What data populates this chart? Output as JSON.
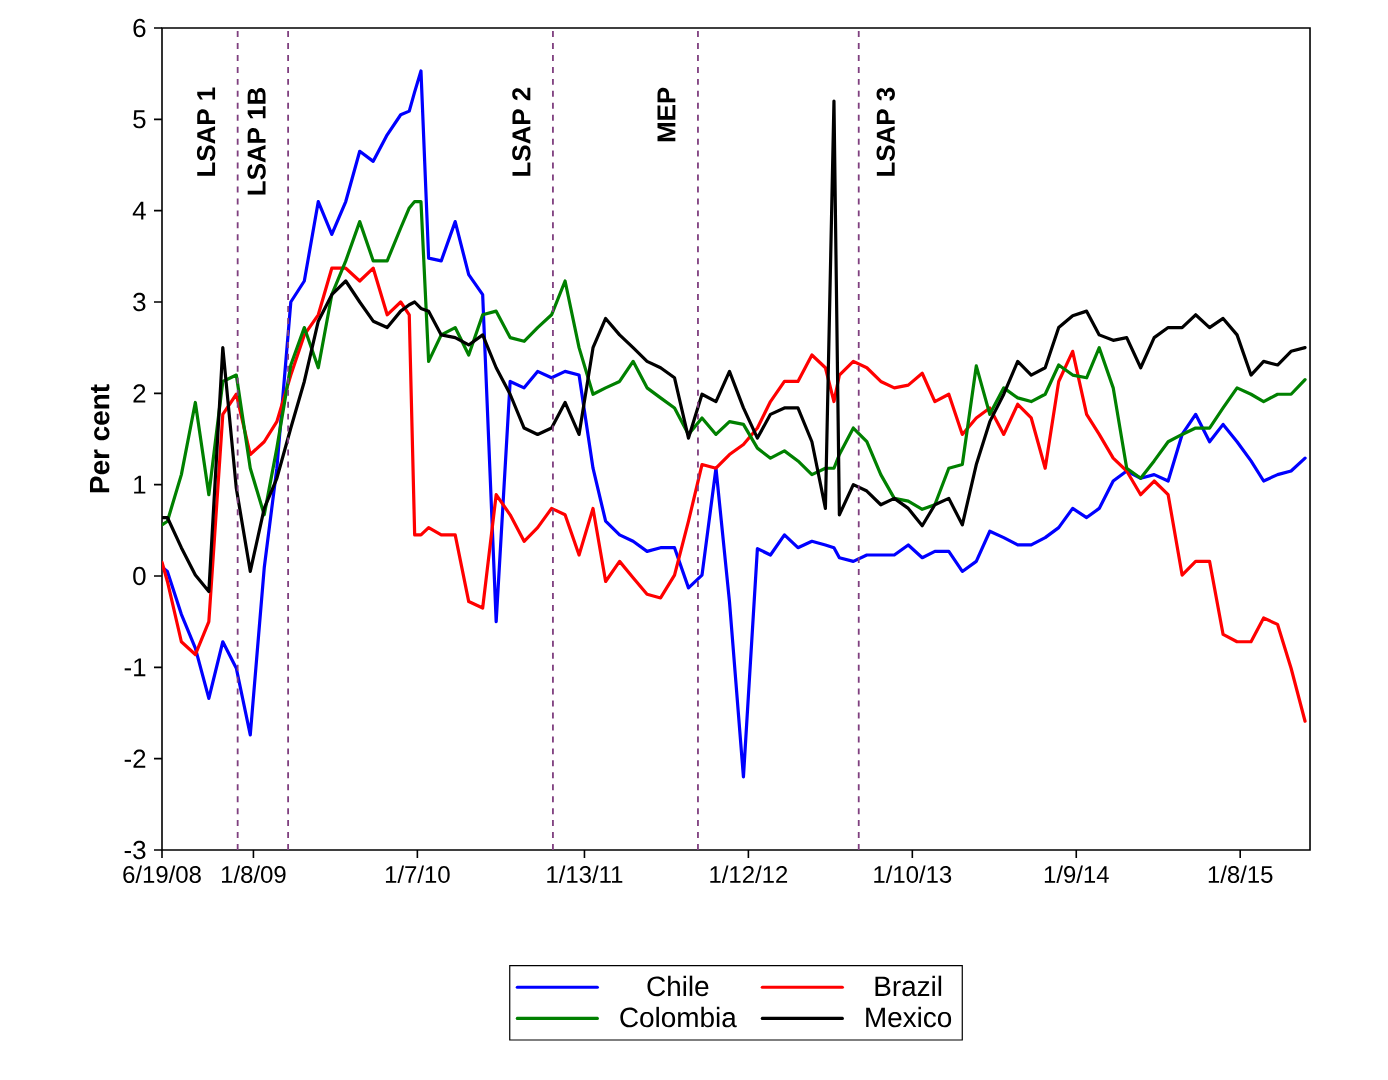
{
  "chart_data": {
    "type": "line",
    "ylabel": "Per cent",
    "x": [
      "2008-06-19",
      "2008-07",
      "2008-08",
      "2008-09",
      "2008-10",
      "2008-11",
      "2008-12",
      "2009-01",
      "2009-02",
      "2009-03",
      "2009-04",
      "2009-05",
      "2009-06",
      "2009-07",
      "2009-08",
      "2009-09",
      "2009-10",
      "2009-11",
      "2009-12",
      "2009-12-20",
      "2010-01",
      "2010-01-15",
      "2010-02",
      "2010-03",
      "2010-04",
      "2010-05",
      "2010-06",
      "2010-07",
      "2010-08",
      "2010-09",
      "2010-10",
      "2010-11",
      "2010-12",
      "2011-01",
      "2011-02",
      "2011-03",
      "2011-04",
      "2011-05",
      "2011-06",
      "2011-07",
      "2011-08",
      "2011-09",
      "2011-10",
      "2011-11",
      "2011-12",
      "2012-01",
      "2012-02",
      "2012-03",
      "2012-04",
      "2012-05",
      "2012-06",
      "2012-07",
      "2012-07-20",
      "2012-08",
      "2012-09",
      "2012-10",
      "2012-11",
      "2012-12",
      "2013-01",
      "2013-02",
      "2013-03",
      "2013-04",
      "2013-05",
      "2013-06",
      "2013-07",
      "2013-08",
      "2013-09",
      "2013-10",
      "2013-11",
      "2013-12",
      "2014-01",
      "2014-02",
      "2014-03",
      "2014-04",
      "2014-05",
      "2014-06",
      "2014-07",
      "2014-08",
      "2014-09",
      "2014-10",
      "2014-11",
      "2014-12",
      "2015-01",
      "2015-02",
      "2015-03",
      "2015-04",
      "2015-05",
      "2015-06"
    ],
    "series": [
      {
        "name": "Chile",
        "color": "#0000ff",
        "values": [
          0.1,
          0.05,
          -0.42,
          -0.79,
          -1.34,
          -0.72,
          -1.01,
          -1.74,
          0.09,
          1.18,
          3.0,
          3.23,
          4.1,
          3.74,
          4.1,
          4.65,
          4.54,
          4.83,
          5.05,
          5.09,
          5.3,
          5.53,
          3.48,
          3.45,
          3.88,
          3.3,
          3.08,
          -0.5,
          2.13,
          2.06,
          2.24,
          2.17,
          2.24,
          2.2,
          1.18,
          0.6,
          0.45,
          0.38,
          0.27,
          0.31,
          0.31,
          -0.13,
          0.01,
          1.18,
          -0.28,
          -2.2,
          0.3,
          0.23,
          0.45,
          0.31,
          0.38,
          0.34,
          0.31,
          0.2,
          0.16,
          0.23,
          0.23,
          0.23,
          0.34,
          0.2,
          0.27,
          0.27,
          0.05,
          0.16,
          0.49,
          0.42,
          0.34,
          0.34,
          0.42,
          0.53,
          0.74,
          0.64,
          0.74,
          1.04,
          1.15,
          1.07,
          1.11,
          1.04,
          1.55,
          1.77,
          1.47,
          1.66,
          1.47,
          1.26,
          1.04,
          1.11,
          1.15,
          1.29
        ]
      },
      {
        "name": "Brazil",
        "color": "#ff0000",
        "values": [
          0.15,
          -0.06,
          -0.72,
          -0.86,
          -0.5,
          1.77,
          1.99,
          1.33,
          1.47,
          1.69,
          2.2,
          2.64,
          2.86,
          3.37,
          3.37,
          3.23,
          3.37,
          2.86,
          3.0,
          2.86,
          0.45,
          0.45,
          0.53,
          0.45,
          0.45,
          -0.28,
          -0.35,
          0.89,
          0.67,
          0.38,
          0.53,
          0.74,
          0.67,
          0.23,
          0.74,
          -0.06,
          0.16,
          -0.02,
          -0.2,
          -0.24,
          0.01,
          0.6,
          1.22,
          1.18,
          1.33,
          1.44,
          1.62,
          1.91,
          2.13,
          2.13,
          2.42,
          2.28,
          1.91,
          2.2,
          2.35,
          2.28,
          2.13,
          2.06,
          2.09,
          2.22,
          1.91,
          1.99,
          1.55,
          1.73,
          1.84,
          1.55,
          1.88,
          1.73,
          1.18,
          2.13,
          2.46,
          1.77,
          1.55,
          1.29,
          1.15,
          0.89,
          1.04,
          0.89,
          0.01,
          0.16,
          0.16,
          -0.64,
          -0.72,
          -0.72,
          -0.46,
          -0.53,
          -1.01,
          -1.59
        ]
      },
      {
        "name": "Colombia",
        "color": "#008000",
        "values": [
          0.56,
          0.6,
          1.11,
          1.9,
          0.89,
          2.13,
          2.2,
          1.18,
          0.67,
          1.4,
          2.31,
          2.72,
          2.28,
          3.08,
          3.45,
          3.88,
          3.45,
          3.45,
          3.81,
          4.03,
          4.1,
          4.1,
          2.35,
          2.64,
          2.72,
          2.42,
          2.86,
          2.9,
          2.61,
          2.57,
          2.72,
          2.86,
          3.23,
          2.5,
          1.99,
          2.06,
          2.13,
          2.35,
          2.06,
          1.95,
          1.84,
          1.55,
          1.73,
          1.55,
          1.69,
          1.66,
          1.4,
          1.29,
          1.37,
          1.26,
          1.11,
          1.18,
          1.18,
          1.33,
          1.62,
          1.47,
          1.11,
          0.85,
          0.82,
          0.73,
          0.78,
          1.18,
          1.22,
          2.3,
          1.77,
          2.06,
          1.95,
          1.91,
          1.99,
          2.31,
          2.2,
          2.17,
          2.5,
          2.06,
          1.18,
          1.07,
          1.26,
          1.47,
          1.55,
          1.62,
          1.62,
          1.84,
          2.06,
          1.99,
          1.91,
          1.99,
          1.99,
          2.15
        ]
      },
      {
        "name": "Mexico",
        "color": "#000000",
        "values": [
          0.64,
          0.64,
          0.31,
          0.01,
          -0.17,
          2.5,
          0.96,
          0.05,
          0.74,
          1.07,
          1.62,
          2.13,
          2.79,
          3.08,
          3.23,
          3.0,
          2.79,
          2.72,
          2.9,
          2.97,
          3.0,
          2.93,
          2.9,
          2.64,
          2.61,
          2.53,
          2.64,
          2.28,
          1.99,
          1.62,
          1.55,
          1.62,
          1.9,
          1.55,
          2.5,
          2.82,
          2.64,
          2.5,
          2.35,
          2.28,
          2.17,
          1.51,
          1.99,
          1.91,
          2.24,
          1.84,
          1.51,
          1.77,
          1.84,
          1.84,
          1.47,
          0.74,
          5.2,
          0.67,
          1.0,
          0.93,
          0.78,
          0.85,
          0.74,
          0.55,
          0.78,
          0.85,
          0.56,
          1.22,
          1.69,
          1.99,
          2.35,
          2.2,
          2.28,
          2.72,
          2.85,
          2.9,
          2.64,
          2.58,
          2.61,
          2.28,
          2.61,
          2.72,
          2.72,
          2.86,
          2.72,
          2.82,
          2.64,
          2.2,
          2.35,
          2.31,
          2.46,
          2.5
        ]
      }
    ],
    "xlim": [
      "2008-06-19",
      "2015-06-12"
    ],
    "xticks": [
      {
        "value": "2008-06-19",
        "label": "6/19/08"
      },
      {
        "value": "2009-01-08",
        "label": "1/8/09"
      },
      {
        "value": "2010-01-07",
        "label": "1/7/10"
      },
      {
        "value": "2011-01-13",
        "label": "1/13/11"
      },
      {
        "value": "2012-01-12",
        "label": "1/12/12"
      },
      {
        "value": "2013-01-10",
        "label": "1/10/13"
      },
      {
        "value": "2014-01-09",
        "label": "1/9/14"
      },
      {
        "value": "2015-01-08",
        "label": "1/8/15"
      }
    ],
    "ylim": [
      -3,
      6
    ],
    "yticks": [
      -3,
      -2,
      -1,
      0,
      1,
      2,
      3,
      4,
      5,
      6
    ],
    "ref_lines": [
      {
        "axis": "x",
        "value": "2008-12-04",
        "label": "LSAP 1",
        "color": "#7f3f7f",
        "line_style": "dashed"
      },
      {
        "axis": "x",
        "value": "2009-03-26",
        "label": "LSAP 1B",
        "color": "#7f3f7f",
        "line_style": "dashed"
      },
      {
        "axis": "x",
        "value": "2010-11-04",
        "label": "LSAP 2",
        "color": "#7f3f7f",
        "line_style": "dashed"
      },
      {
        "axis": "x",
        "value": "2011-09-22",
        "label": "MEP",
        "color": "#7f3f7f",
        "line_style": "dashed"
      },
      {
        "axis": "x",
        "value": "2012-09-13",
        "label": "LSAP 3",
        "color": "#7f3f7f",
        "line_style": "dashed"
      }
    ],
    "legend": "bottom",
    "marker": "none",
    "line_style": "solid"
  }
}
